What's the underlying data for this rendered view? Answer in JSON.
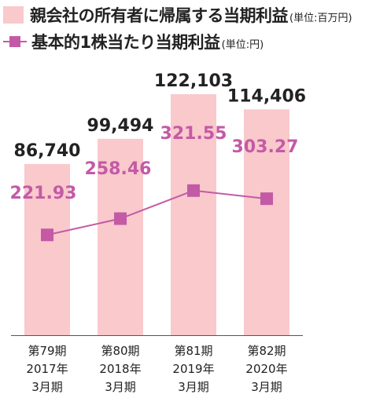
{
  "legend": {
    "bar_label": "親会社の所有者に帰属する当期利益",
    "bar_unit": "(単位:百万円)",
    "line_label": "基本的1株当たり当期利益",
    "line_unit": "(単位:円)"
  },
  "colors": {
    "bar": "#f9c9cc",
    "line": "#c45aa5",
    "bar_value_text": "#222222",
    "line_value_text": "#c45aa5",
    "axis": "#555555"
  },
  "chart_data": {
    "type": "bar",
    "categories": [
      [
        "第79期",
        "2017年",
        "3月期"
      ],
      [
        "第80期",
        "2018年",
        "3月期"
      ],
      [
        "第81期",
        "2019年",
        "3月期"
      ],
      [
        "第82期",
        "2020年",
        "3月期"
      ]
    ],
    "series": [
      {
        "name": "親会社の所有者に帰属する当期利益",
        "unit": "百万円",
        "type": "bar",
        "values": [
          86740,
          99494,
          122103,
          114406
        ],
        "labels": [
          "86,740",
          "99,494",
          "122,103",
          "114,406"
        ]
      },
      {
        "name": "基本的1株当たり当期利益",
        "unit": "円",
        "type": "line",
        "values": [
          221.93,
          258.46,
          321.55,
          303.27
        ],
        "labels": [
          "221.93",
          "258.46",
          "321.55",
          "303.27"
        ]
      }
    ],
    "grid": false,
    "legend_position": "top-left"
  }
}
